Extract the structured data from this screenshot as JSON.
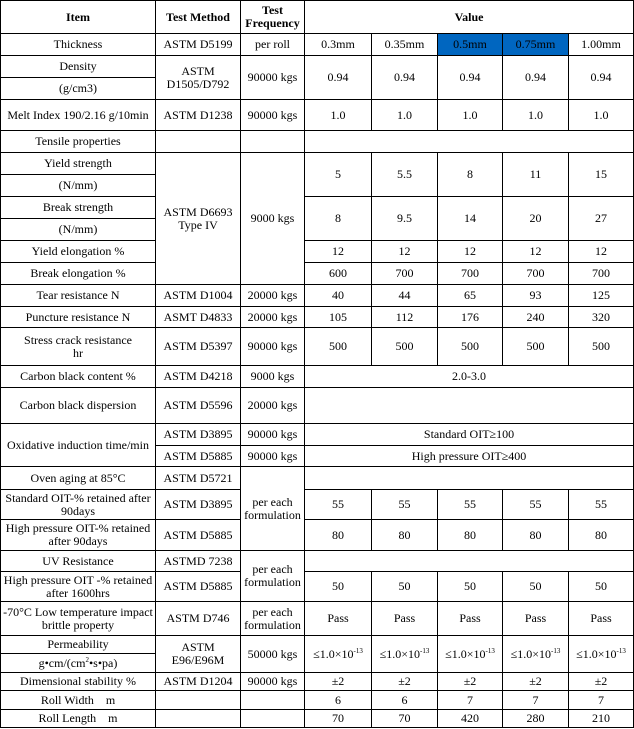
{
  "header": {
    "item": "Item",
    "method": "Test Method",
    "frequency": "Test Frequency",
    "value": "Value"
  },
  "highlight_color": "#0066c0",
  "thickness": {
    "item": "Thickness",
    "method": "ASTM D5199",
    "frequency": "per roll",
    "values": [
      "0.3mm",
      "0.35mm",
      "0.5mm",
      "0.75mm",
      "1.00mm"
    ],
    "highlighted": [
      "0.5mm",
      "0.75mm"
    ]
  },
  "density": {
    "item": "Density",
    "unit": "(g/cm3)",
    "method": "ASTM D1505/D792",
    "frequency": "90000 kgs",
    "values": [
      "0.94",
      "0.94",
      "0.94",
      "0.94",
      "0.94"
    ]
  },
  "melt": {
    "item": "Melt Index 190/2.16 g/10min",
    "method": "ASTM D1238",
    "frequency": "90000 kgs",
    "values": [
      "1.0",
      "1.0",
      "1.0",
      "1.0",
      "1.0"
    ]
  },
  "tensile": {
    "item": "Tensile properties",
    "method": "ASTM D6693 Type IV",
    "frequency": "9000 kgs"
  },
  "yield_strength": {
    "item": "Yield strength",
    "unit": "(N/mm)",
    "values": [
      "5",
      "5.5",
      "8",
      "11",
      "15"
    ]
  },
  "break_strength": {
    "item": "Break strength",
    "unit": "(N/mm)",
    "values": [
      "8",
      "9.5",
      "14",
      "20",
      "27"
    ]
  },
  "yield_elongation": {
    "item": "Yield elongation %",
    "values": [
      "12",
      "12",
      "12",
      "12",
      "12"
    ]
  },
  "break_elongation": {
    "item": "Break elongation %",
    "values": [
      "600",
      "700",
      "700",
      "700",
      "700"
    ]
  },
  "tear": {
    "item": "Tear resistance N",
    "method": "ASTM D1004",
    "frequency": "20000 kgs",
    "values": [
      "40",
      "44",
      "65",
      "93",
      "125"
    ]
  },
  "puncture": {
    "item": "Puncture resistance N",
    "method": "ASMT D4833",
    "frequency": "20000 kgs",
    "values": [
      "105",
      "112",
      "176",
      "240",
      "320"
    ]
  },
  "stress_crack": {
    "item": "Stress crack resistance",
    "unit": "hr",
    "method": "ASTM D5397",
    "frequency": "90000 kgs",
    "values": [
      "500",
      "500",
      "500",
      "500",
      "500"
    ]
  },
  "cb_content": {
    "item": "Carbon black content %",
    "method": "ASTM D4218",
    "frequency": "9000 kgs",
    "value": "2.0-3.0"
  },
  "cb_dispersion": {
    "item": "Carbon black dispersion",
    "method": "ASTM D5596",
    "frequency": "20000 kgs"
  },
  "oit": {
    "item": "Oxidative induction time/min",
    "method1": "ASTM D3895",
    "frequency1": "90000 kgs",
    "value1": "Standard OIT≥100",
    "method2": "ASTM D5885",
    "frequency2": "90000 kgs",
    "value2": "High pressure OIT≥400"
  },
  "oven": {
    "item": "Oven aging at 85°C",
    "method": "ASTM D5721",
    "frequency": "per each formulation"
  },
  "std_oit_retained": {
    "item": "Standard OIT-% retained after 90days",
    "method": "ASTM D3895",
    "values": [
      "55",
      "55",
      "55",
      "55",
      "55"
    ]
  },
  "hp_oit_retained": {
    "item": "High pressure OIT-% retained after 90days",
    "method": "ASTM D5885",
    "values": [
      "80",
      "80",
      "80",
      "80",
      "80"
    ]
  },
  "uv": {
    "item": "UV Resistance",
    "method": "ASTMD 7238",
    "frequency": "per each formulation"
  },
  "uv_hp": {
    "item": "High pressure OIT -% retained after 1600hrs",
    "method": "ASTM D5885",
    "values": [
      "50",
      "50",
      "50",
      "50",
      "50"
    ]
  },
  "low_temp": {
    "item": "-70°C Low temperature impact brittle property",
    "method": "ASTM D746",
    "frequency": "per each formulation",
    "values": [
      "Pass",
      "Pass",
      "Pass",
      "Pass",
      "Pass"
    ]
  },
  "permeability": {
    "item": "Permeability",
    "unit_pre": "g•cm/(cm",
    "unit_sup": "2",
    "unit_post": "•s•pa)",
    "method": "ASTM E96/E96M",
    "frequency": "50000 kgs",
    "value_base": "≤1.0×10",
    "value_exp": "-13"
  },
  "dimensional": {
    "item": "Dimensional stability %",
    "method": "ASTM D1204",
    "frequency": "90000 kgs",
    "values": [
      "±2",
      "±2",
      "±2",
      "±2",
      "±2"
    ]
  },
  "roll_width": {
    "item": "Roll Width    m",
    "values": [
      "6",
      "6",
      "7",
      "7",
      "7"
    ]
  },
  "roll_length": {
    "item": "Roll Length    m",
    "values": [
      "70",
      "70",
      "420",
      "280",
      "210"
    ]
  }
}
